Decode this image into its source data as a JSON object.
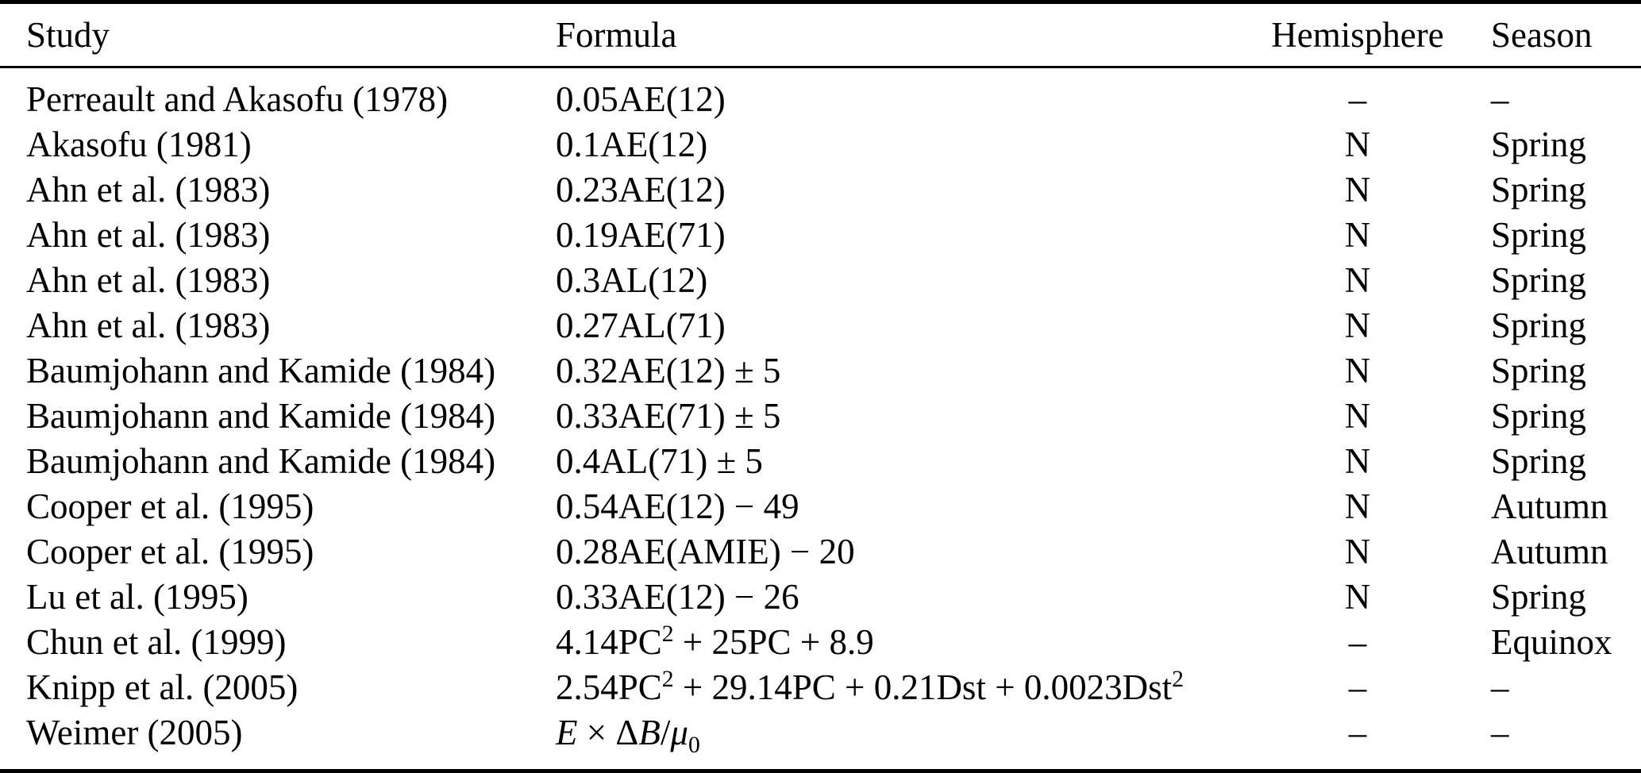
{
  "table": {
    "columns": [
      {
        "label": "Study"
      },
      {
        "label": "Formula"
      },
      {
        "label": "Hemisphere"
      },
      {
        "label": "Season"
      }
    ],
    "rows": [
      {
        "study": "Perreault and Akasofu (1978)",
        "formula": "0.05AE(12)",
        "hemisphere": "–",
        "season": "–"
      },
      {
        "study": "Akasofu (1981)",
        "formula": "0.1AE(12)",
        "hemisphere": "N",
        "season": "Spring"
      },
      {
        "study": "Ahn et al. (1983)",
        "formula": "0.23AE(12)",
        "hemisphere": "N",
        "season": "Spring"
      },
      {
        "study": "Ahn et al. (1983)",
        "formula": "0.19AE(71)",
        "hemisphere": "N",
        "season": "Spring"
      },
      {
        "study": "Ahn et al. (1983)",
        "formula": "0.3AL(12)",
        "hemisphere": "N",
        "season": "Spring"
      },
      {
        "study": "Ahn et al. (1983)",
        "formula": "0.27AL(71)",
        "hemisphere": "N",
        "season": "Spring"
      },
      {
        "study": "Baumjohann and Kamide (1984)",
        "formula": "0.32AE(12) ± 5",
        "hemisphere": "N",
        "season": "Spring"
      },
      {
        "study": "Baumjohann and Kamide (1984)",
        "formula": "0.33AE(71) ± 5",
        "hemisphere": "N",
        "season": "Spring"
      },
      {
        "study": "Baumjohann and Kamide (1984)",
        "formula": "0.4AL(71) ± 5",
        "hemisphere": "N",
        "season": "Spring"
      },
      {
        "study": "Cooper et al. (1995)",
        "formula": "0.54AE(12) − 49",
        "hemisphere": "N",
        "season": "Autumn"
      },
      {
        "study": "Cooper et al. (1995)",
        "formula": "0.28AE(AMIE) − 20",
        "hemisphere": "N",
        "season": "Autumn"
      },
      {
        "study": "Lu et al. (1995)",
        "formula": "0.33AE(12) − 26",
        "hemisphere": "N",
        "season": "Spring"
      },
      {
        "study": "Chun et al. (1999)",
        "formula": "4.14PC² + 25PC + 8.9",
        "hemisphere": "–",
        "season": "Equinox"
      },
      {
        "study": "Knipp et al. (2005)",
        "formula": "2.54PC² + 29.14PC + 0.21Dst + 0.0023Dst²",
        "hemisphere": "–",
        "season": "–"
      },
      {
        "study": "Weimer (2005)",
        "formula": "E × ΔB/μ₀",
        "hemisphere": "–",
        "season": "–"
      }
    ]
  },
  "colors": {
    "text": "#000000",
    "background": "#ffffff",
    "rule": "#000000"
  }
}
